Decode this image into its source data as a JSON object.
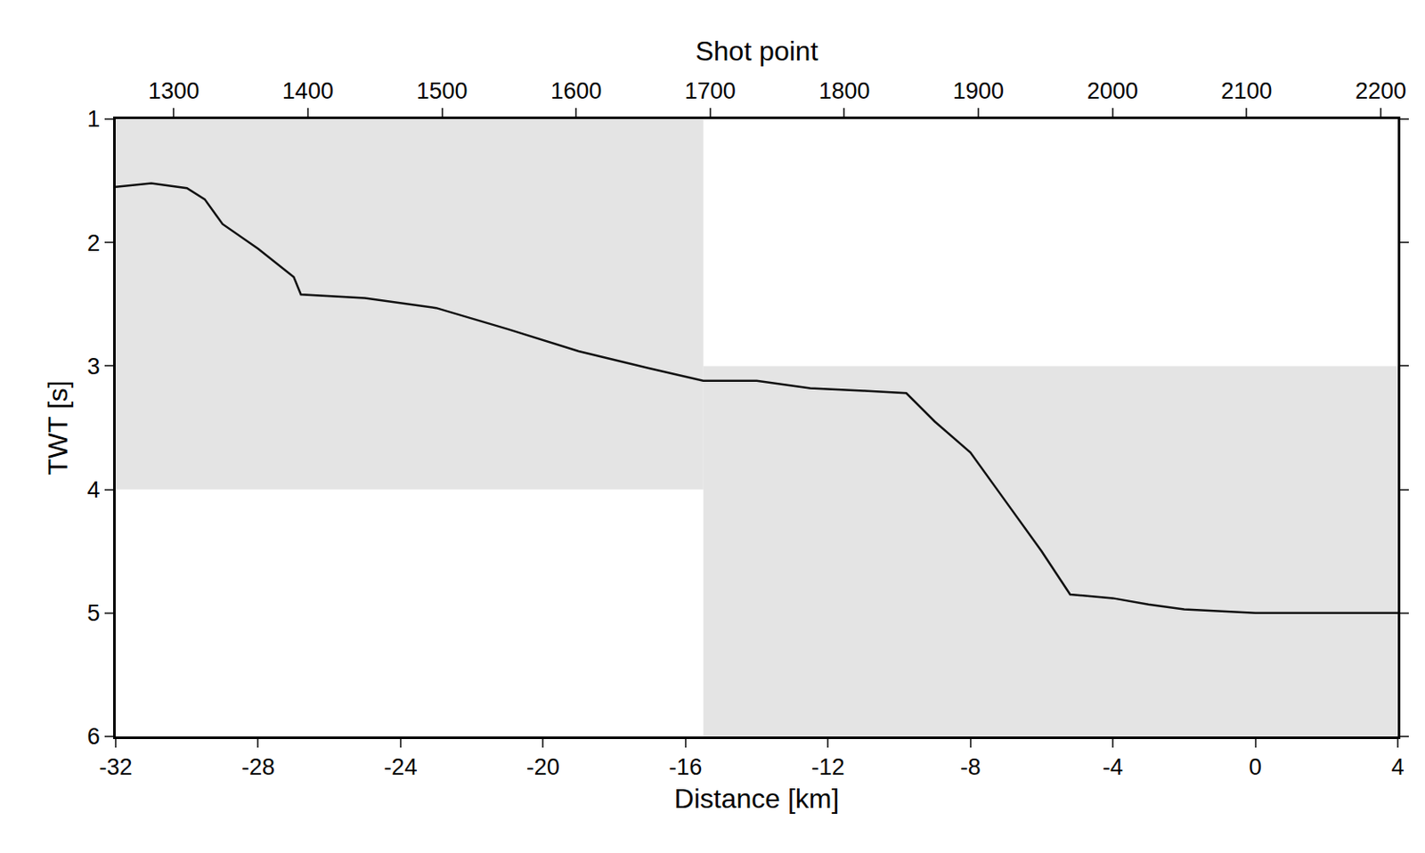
{
  "chart_data": {
    "type": "line",
    "x_label": "Distance [km]",
    "x2_label": "Shot point",
    "y_label": "TWT [s]",
    "xlim": [
      -32,
      4
    ],
    "xticks": [
      -32,
      -28,
      -24,
      -20,
      -16,
      -12,
      -8,
      -4,
      0,
      4
    ],
    "x2lim": [
      1256.7,
      2212.7
    ],
    "x2ticks": [
      1300,
      1400,
      1500,
      1600,
      1700,
      1800,
      1900,
      2000,
      2100,
      2200
    ],
    "ylim": [
      6,
      1
    ],
    "yticks": [
      1,
      2,
      3,
      4,
      5,
      6
    ],
    "grid": false,
    "windows": [
      {
        "x": [
          -32,
          -15.5
        ],
        "y": [
          1,
          4
        ],
        "color": "#e4e4e4"
      },
      {
        "x": [
          -15.5,
          4
        ],
        "y": [
          3,
          6
        ],
        "color": "#e4e4e4"
      }
    ],
    "series": [
      {
        "color": "#111111",
        "x": [
          -32,
          -31,
          -30,
          -29.5,
          -29,
          -28,
          -27,
          -26.8,
          -25,
          -23,
          -21,
          -19,
          -17,
          -15.5,
          -14,
          -12.5,
          -11,
          -9.8,
          -9,
          -8,
          -7,
          -6,
          -5.2,
          -4,
          -3,
          -2,
          0,
          4
        ],
        "values": [
          1.55,
          1.52,
          1.56,
          1.65,
          1.85,
          2.05,
          2.28,
          2.42,
          2.45,
          2.53,
          2.7,
          2.88,
          3.02,
          3.12,
          3.12,
          3.18,
          3.2,
          3.22,
          3.45,
          3.7,
          4.1,
          4.5,
          4.85,
          4.88,
          4.93,
          4.97,
          5.0,
          5.0
        ]
      }
    ]
  }
}
